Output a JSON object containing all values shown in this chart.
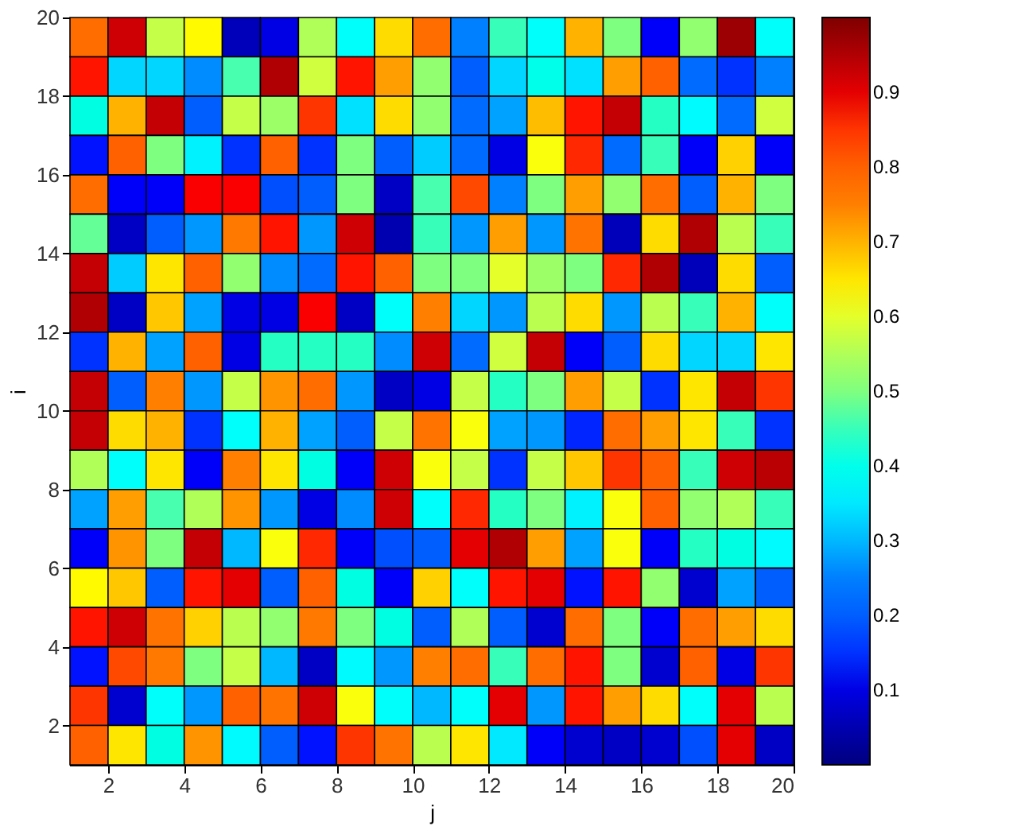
{
  "chart_data": {
    "type": "heatmap",
    "xlabel": "j",
    "ylabel": "i",
    "x": [
      1.5,
      2.5,
      3.5,
      4.5,
      5.5,
      6.5,
      7.5,
      8.5,
      9.5,
      10.5,
      11.5,
      12.5,
      13.5,
      14.5,
      15.5,
      16.5,
      17.5,
      18.5,
      19.5
    ],
    "y": [
      19.5,
      18.5,
      17.5,
      16.5,
      15.5,
      14.5,
      13.5,
      12.5,
      11.5,
      10.5,
      9.5,
      8.5,
      7.5,
      6.5,
      5.5,
      4.5,
      3.5,
      2.5,
      1.5
    ],
    "xlim": [
      1,
      20
    ],
    "xticks": [
      2,
      4,
      6,
      8,
      10,
      12,
      14,
      16,
      18,
      20
    ],
    "ylim": [
      1,
      20
    ],
    "yticks": [
      2,
      4,
      6,
      8,
      10,
      12,
      14,
      16,
      18,
      20
    ],
    "clim": [
      0,
      1
    ],
    "cticks": [
      0.1,
      0.2,
      0.3,
      0.4,
      0.5,
      0.6,
      0.7,
      0.8,
      0.9
    ],
    "colors": [
      "#00007f",
      "#0000ff",
      "#007fff",
      "#00ffff",
      "#7fff7f",
      "#ffff00",
      "#ff7f00",
      "#ff0000",
      "#7f0000"
    ],
    "grid": false,
    "cells": [
      [
        0.78,
        0.92,
        0.57,
        0.63,
        0.06,
        0.1,
        0.55,
        0.38,
        0.66,
        0.78,
        0.25,
        0.45,
        0.38,
        0.7,
        0.5,
        0.12,
        0.52,
        0.97,
        0.38
      ],
      [
        0.87,
        0.33,
        0.33,
        0.26,
        0.46,
        0.95,
        0.58,
        0.87,
        0.72,
        0.52,
        0.2,
        0.33,
        0.4,
        0.34,
        0.72,
        0.8,
        0.22,
        0.15,
        0.25
      ],
      [
        0.41,
        0.7,
        0.93,
        0.2,
        0.57,
        0.53,
        0.85,
        0.34,
        0.66,
        0.52,
        0.22,
        0.28,
        0.69,
        0.87,
        0.93,
        0.44,
        0.37,
        0.22,
        0.58
      ],
      [
        0.13,
        0.8,
        0.5,
        0.36,
        0.15,
        0.8,
        0.15,
        0.5,
        0.2,
        0.32,
        0.22,
        0.1,
        0.62,
        0.86,
        0.22,
        0.45,
        0.12,
        0.67,
        0.12
      ],
      [
        0.78,
        0.12,
        0.12,
        0.88,
        0.88,
        0.18,
        0.2,
        0.5,
        0.07,
        0.46,
        0.83,
        0.25,
        0.5,
        0.72,
        0.52,
        0.78,
        0.2,
        0.7,
        0.5
      ],
      [
        0.48,
        0.07,
        0.2,
        0.27,
        0.76,
        0.87,
        0.27,
        0.92,
        0.05,
        0.45,
        0.27,
        0.72,
        0.27,
        0.77,
        0.06,
        0.66,
        0.95,
        0.56,
        0.45
      ],
      [
        0.93,
        0.32,
        0.65,
        0.8,
        0.52,
        0.26,
        0.22,
        0.87,
        0.8,
        0.5,
        0.5,
        0.6,
        0.53,
        0.5,
        0.86,
        0.95,
        0.06,
        0.66,
        0.2
      ],
      [
        0.95,
        0.07,
        0.68,
        0.28,
        0.1,
        0.1,
        0.88,
        0.07,
        0.38,
        0.75,
        0.33,
        0.27,
        0.56,
        0.66,
        0.27,
        0.56,
        0.45,
        0.7,
        0.38
      ],
      [
        0.15,
        0.7,
        0.28,
        0.8,
        0.1,
        0.44,
        0.44,
        0.44,
        0.26,
        0.92,
        0.22,
        0.58,
        0.93,
        0.12,
        0.2,
        0.66,
        0.33,
        0.33,
        0.65
      ],
      [
        0.93,
        0.2,
        0.75,
        0.27,
        0.57,
        0.73,
        0.78,
        0.27,
        0.07,
        0.1,
        0.57,
        0.44,
        0.5,
        0.72,
        0.57,
        0.15,
        0.65,
        0.93,
        0.85
      ],
      [
        0.93,
        0.66,
        0.7,
        0.15,
        0.38,
        0.7,
        0.28,
        0.2,
        0.57,
        0.77,
        0.62,
        0.28,
        0.27,
        0.14,
        0.78,
        0.72,
        0.65,
        0.45,
        0.15
      ],
      [
        0.55,
        0.38,
        0.65,
        0.12,
        0.75,
        0.65,
        0.41,
        0.12,
        0.92,
        0.62,
        0.57,
        0.15,
        0.57,
        0.68,
        0.85,
        0.8,
        0.45,
        0.92,
        0.94
      ],
      [
        0.28,
        0.72,
        0.46,
        0.55,
        0.73,
        0.27,
        0.1,
        0.26,
        0.92,
        0.38,
        0.86,
        0.44,
        0.5,
        0.36,
        0.62,
        0.8,
        0.52,
        0.55,
        0.45
      ],
      [
        0.12,
        0.73,
        0.5,
        0.93,
        0.3,
        0.62,
        0.86,
        0.12,
        0.18,
        0.2,
        0.9,
        0.95,
        0.72,
        0.28,
        0.62,
        0.12,
        0.44,
        0.41,
        0.37
      ],
      [
        0.63,
        0.68,
        0.2,
        0.87,
        0.9,
        0.2,
        0.8,
        0.41,
        0.12,
        0.67,
        0.38,
        0.87,
        0.9,
        0.13,
        0.87,
        0.52,
        0.08,
        0.28,
        0.2
      ],
      [
        0.87,
        0.92,
        0.77,
        0.67,
        0.56,
        0.52,
        0.76,
        0.5,
        0.41,
        0.2,
        0.55,
        0.2,
        0.08,
        0.78,
        0.5,
        0.12,
        0.78,
        0.72,
        0.66
      ],
      [
        0.13,
        0.83,
        0.76,
        0.5,
        0.57,
        0.3,
        0.07,
        0.37,
        0.27,
        0.75,
        0.78,
        0.45,
        0.78,
        0.87,
        0.5,
        0.08,
        0.8,
        0.1,
        0.85
      ],
      [
        0.85,
        0.08,
        0.38,
        0.27,
        0.8,
        0.77,
        0.92,
        0.62,
        0.38,
        0.3,
        0.38,
        0.9,
        0.27,
        0.87,
        0.72,
        0.66,
        0.38,
        0.9,
        0.56
      ],
      [
        0.8,
        0.65,
        0.41,
        0.73,
        0.37,
        0.2,
        0.13,
        0.85,
        0.77,
        0.56,
        0.65,
        0.35,
        0.12,
        0.08,
        0.07,
        0.08,
        0.18,
        0.9,
        0.07
      ]
    ]
  }
}
